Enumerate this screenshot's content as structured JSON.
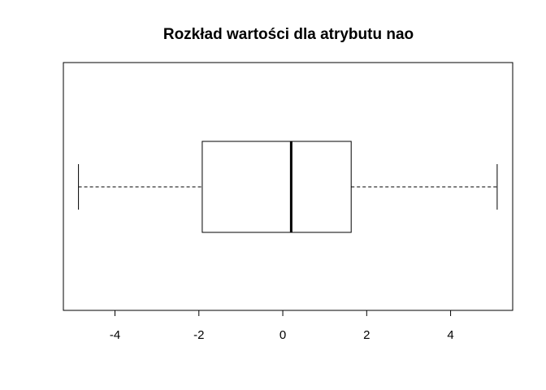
{
  "chart_data": {
    "type": "boxplot",
    "orientation": "horizontal",
    "title": "Rozkład wartości dla atrybutu nao",
    "xlabel": "",
    "ylabel": "",
    "xlim": [
      -5.23,
      5.48
    ],
    "xticks": [
      -4,
      -2,
      0,
      2,
      4
    ],
    "xtick_labels": [
      "-4",
      "-2",
      "0",
      "2",
      "4"
    ],
    "box": {
      "whisker_low": -4.87,
      "q1": -1.92,
      "median": 0.2,
      "q3": 1.63,
      "whisker_high": 5.11
    },
    "grid": false,
    "colors": {
      "stroke": "#000000",
      "fill": "#ffffff"
    }
  }
}
